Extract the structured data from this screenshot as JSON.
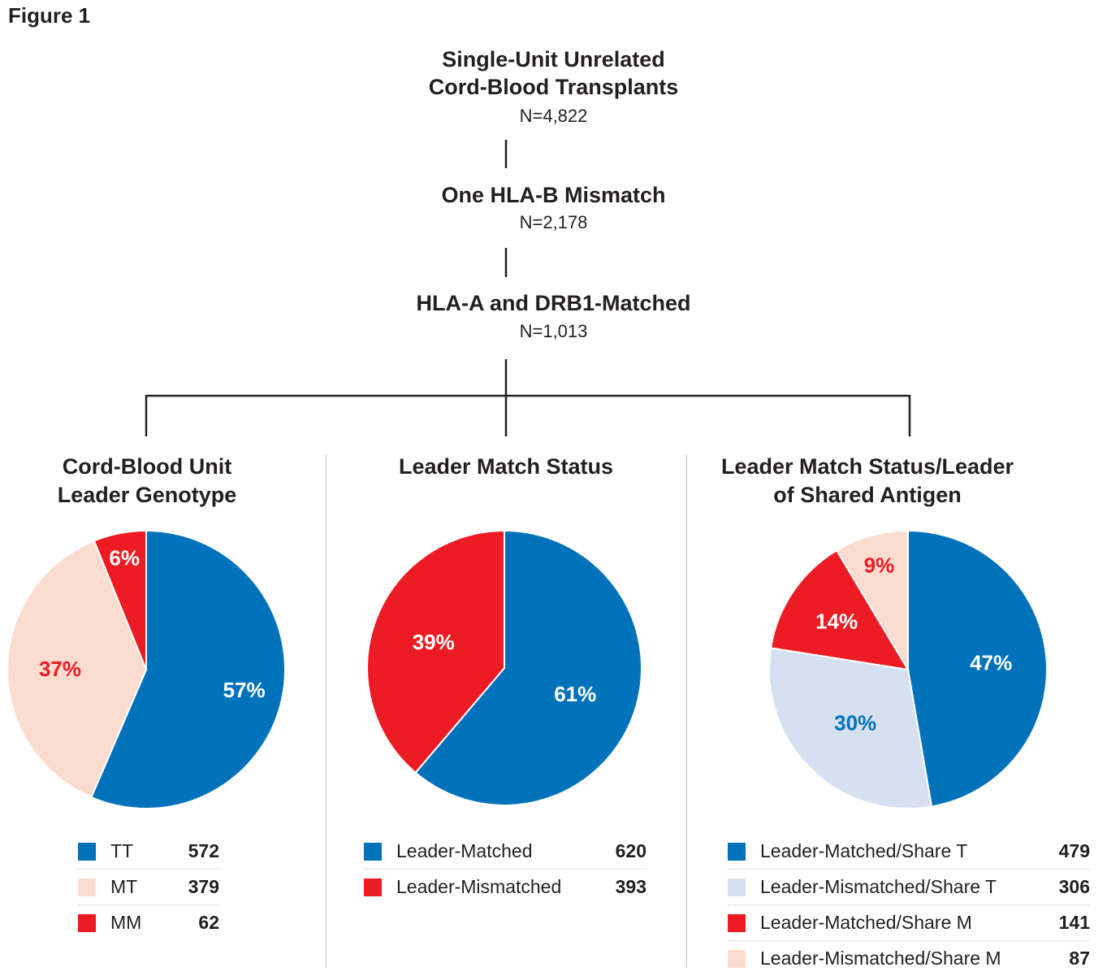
{
  "figure_label": "Figure 1",
  "flow": [
    {
      "title_lines": [
        "Single-Unit Unrelated",
        "Cord-Blood Transplants"
      ],
      "n": "N=4,822"
    },
    {
      "title_lines": [
        "One HLA-B Mismatch"
      ],
      "n": "N=2,178"
    },
    {
      "title_lines": [
        "HLA-A and DRB1-Matched"
      ],
      "n": "N=1,013"
    }
  ],
  "colors": {
    "blue": "#0072bc",
    "peach": "#fddcd0",
    "red": "#ed1c24",
    "light_blue": "#d5e0f1",
    "line": "#231f20"
  },
  "chart_data": [
    {
      "type": "pie",
      "title_lines": [
        "Cord-Blood Unit",
        "Leader Genotype"
      ],
      "slices": [
        {
          "label": "TT",
          "value": 572,
          "percent_label": "57%",
          "color": "#0072bc",
          "text_color": "#ffffff"
        },
        {
          "label": "MT",
          "value": 379,
          "percent_label": "37%",
          "color": "#fddcd0",
          "text_color": "#ed1c24"
        },
        {
          "label": "MM",
          "value": 62,
          "percent_label": "6%",
          "color": "#ed1c24",
          "text_color": "#ffffff"
        }
      ]
    },
    {
      "type": "pie",
      "title_lines": [
        "Leader Match Status"
      ],
      "slices": [
        {
          "label": "Leader-Matched",
          "value": 620,
          "percent_label": "61%",
          "color": "#0072bc",
          "text_color": "#ffffff"
        },
        {
          "label": "Leader-Mismatched",
          "value": 393,
          "percent_label": "39%",
          "color": "#ed1c24",
          "text_color": "#ffffff"
        }
      ]
    },
    {
      "type": "pie",
      "title_lines": [
        "Leader Match Status/Leader",
        "of Shared Antigen"
      ],
      "slices": [
        {
          "label": "Leader-Matched/Share T",
          "value": 479,
          "percent_label": "47%",
          "color": "#0072bc",
          "text_color": "#ffffff"
        },
        {
          "label": "Leader-Mismatched/Share T",
          "value": 306,
          "percent_label": "30%",
          "color": "#d5e0f1",
          "text_color": "#0072bc"
        },
        {
          "label": "Leader-Matched/Share M",
          "value": 141,
          "percent_label": "14%",
          "color": "#ed1c24",
          "text_color": "#ffffff"
        },
        {
          "label": "Leader-Mismatched/Share M",
          "value": 87,
          "percent_label": "9%",
          "color": "#fddcd0",
          "text_color": "#ed1c24"
        }
      ]
    }
  ]
}
